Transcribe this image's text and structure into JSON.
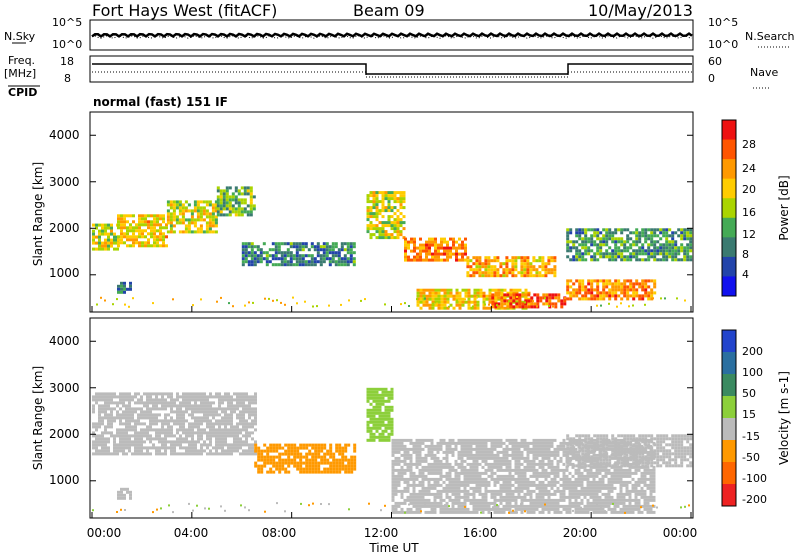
{
  "header": {
    "station": "Fort Hays West (fitACF)",
    "beam": "Beam 09",
    "date": "10/May/2013"
  },
  "noise_panel": {
    "left_label": "N.Sky",
    "right_label": "N.Search",
    "left_ticks": [
      "10^5",
      "10^0"
    ],
    "right_ticks": [
      "10^5",
      "10^0"
    ]
  },
  "freq_panel": {
    "left_label_1": "Freq.",
    "left_label_2": "[MHz]",
    "left_ticks": [
      "18",
      "8"
    ],
    "right_label": "Nave",
    "right_ticks": [
      "60",
      "0"
    ],
    "cpid_label": "CPID",
    "cpid_text": "normal (fast) 151 IF"
  },
  "panels": [
    {
      "ylabel": "Slant Range [km]",
      "yticks": [
        "4000",
        "3000",
        "2000",
        "1000"
      ]
    },
    {
      "ylabel": "Slant Range [km]",
      "yticks": [
        "4000",
        "3000",
        "2000",
        "1000"
      ]
    }
  ],
  "x_axis": {
    "ticks": [
      "00:00",
      "04:00",
      "08:00",
      "12:00",
      "16:00",
      "20:00",
      "00:00"
    ],
    "label": "Time UT"
  },
  "power_scale": {
    "label": "Power [dB]",
    "ticks": [
      "28",
      "24",
      "20",
      "16",
      "12",
      "8",
      "4"
    ],
    "colors": [
      "#ee1111",
      "#ff5500",
      "#ff9900",
      "#ffcc00",
      "#aad400",
      "#44aa55",
      "#3a7a70",
      "#2244aa",
      "#1111ee"
    ]
  },
  "velocity_scale": {
    "label": "Velocity [m s-1]",
    "ticks": [
      "200",
      "100",
      "50",
      "15",
      "-15",
      "-50",
      "-100",
      "-200"
    ],
    "colors": [
      "#2244cc",
      "#2a6fa0",
      "#3a8a60",
      "#8ccf3a",
      "#bbbbbb",
      "#ff9900",
      "#ff6600",
      "#ee2222"
    ]
  },
  "chart_data": [
    {
      "type": "heatmap",
      "title": "Power",
      "x_range": [
        "00:00",
        "24:00"
      ],
      "y_range_km": [
        200,
        4500
      ],
      "regions": [
        {
          "t0": 0.0,
          "t1": 1.0,
          "r0": 1550,
          "r1": 2100,
          "power_db": 18
        },
        {
          "t0": 1.0,
          "t1": 3.0,
          "r0": 1600,
          "r1": 2300,
          "power_db": 20
        },
        {
          "t0": 3.0,
          "t1": 5.0,
          "r0": 1900,
          "r1": 2600,
          "power_db": 18
        },
        {
          "t0": 5.0,
          "t1": 6.5,
          "r0": 2300,
          "r1": 2900,
          "power_db": 14
        },
        {
          "t0": 6.0,
          "t1": 10.5,
          "r0": 1200,
          "r1": 1700,
          "power_db": 10
        },
        {
          "t0": 11.0,
          "t1": 12.5,
          "r0": 1800,
          "r1": 2800,
          "power_db": 18
        },
        {
          "t0": 12.5,
          "t1": 15.0,
          "r0": 1300,
          "r1": 1800,
          "power_db": 24
        },
        {
          "t0": 15.0,
          "t1": 18.5,
          "r0": 1000,
          "r1": 1400,
          "power_db": 22
        },
        {
          "t0": 13.0,
          "t1": 17.5,
          "r0": 300,
          "r1": 700,
          "power_db": 20
        },
        {
          "t0": 16.0,
          "t1": 19.0,
          "r0": 300,
          "r1": 600,
          "power_db": 26
        },
        {
          "t0": 19.0,
          "t1": 22.5,
          "r0": 500,
          "r1": 900,
          "power_db": 24
        },
        {
          "t0": 19.0,
          "t1": 24.0,
          "r0": 1300,
          "r1": 2000,
          "power_db": 12
        },
        {
          "t0": 1.0,
          "t1": 1.5,
          "r0": 650,
          "r1": 850,
          "power_db": 10
        }
      ]
    },
    {
      "type": "heatmap",
      "title": "Velocity",
      "x_range": [
        "00:00",
        "24:00"
      ],
      "y_range_km": [
        200,
        4500
      ],
      "regions": [
        {
          "t0": 0.0,
          "t1": 6.5,
          "r0": 1550,
          "r1": 2900,
          "velocity": 0
        },
        {
          "t0": 6.5,
          "t1": 10.5,
          "r0": 1200,
          "r1": 1800,
          "velocity": -40
        },
        {
          "t0": 11.0,
          "t1": 12.0,
          "r0": 1900,
          "r1": 3000,
          "velocity": 30
        },
        {
          "t0": 12.0,
          "t1": 22.5,
          "r0": 300,
          "r1": 1900,
          "velocity": 0
        },
        {
          "t0": 19.0,
          "t1": 24.0,
          "r0": 1300,
          "r1": 2000,
          "velocity": 0
        },
        {
          "t0": 1.0,
          "t1": 1.5,
          "r0": 650,
          "r1": 850,
          "velocity": 0
        }
      ]
    }
  ]
}
